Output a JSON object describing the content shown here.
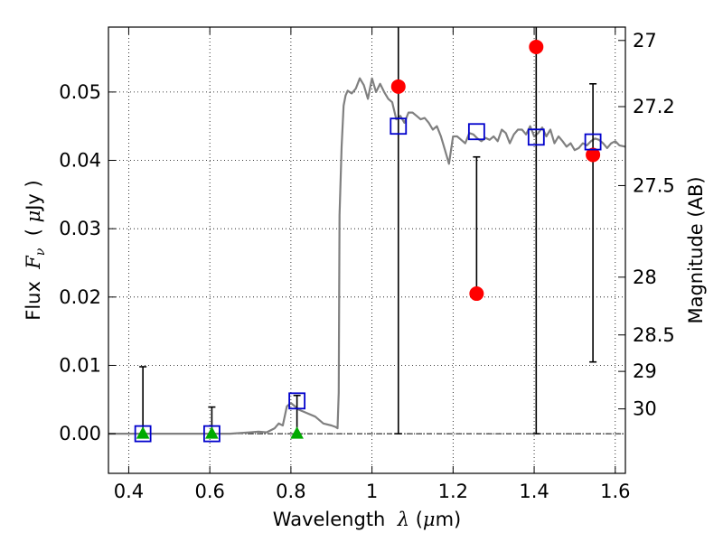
{
  "chart_data": {
    "type": "scatter",
    "xlabel_parts": [
      "Wavelength  ",
      "λ",
      " (",
      "μ",
      "m)"
    ],
    "ylabel_parts": [
      "Flux  ",
      "F",
      "ν",
      "  ( ",
      "μ",
      "Jy )"
    ],
    "y2label": "Magnitude (AB)",
    "xlim": [
      0.35,
      1.625
    ],
    "ylim": [
      -0.0058,
      0.0595
    ],
    "grid": true,
    "x_ticks": [
      {
        "value": 0.4,
        "label": "0.4"
      },
      {
        "value": 0.6,
        "label": "0.6"
      },
      {
        "value": 0.8,
        "label": "0.8"
      },
      {
        "value": 1.0,
        "label": "1"
      },
      {
        "value": 1.2,
        "label": "1.2"
      },
      {
        "value": 1.4,
        "label": "1.4"
      },
      {
        "value": 1.6,
        "label": "1.6"
      }
    ],
    "y_ticks": [
      {
        "value": 0.0,
        "label": "0.00"
      },
      {
        "value": 0.01,
        "label": "0.01"
      },
      {
        "value": 0.02,
        "label": "0.02"
      },
      {
        "value": 0.03,
        "label": "0.03"
      },
      {
        "value": 0.04,
        "label": "0.04"
      },
      {
        "value": 0.05,
        "label": "0.05"
      }
    ],
    "y2_ticks": [
      {
        "mag": 27,
        "label": "27"
      },
      {
        "mag": 27.2,
        "label": "27.2"
      },
      {
        "mag": 27.5,
        "label": "27.5"
      },
      {
        "mag": 28,
        "label": "28"
      },
      {
        "mag": 28.5,
        "label": "28.5"
      },
      {
        "mag": 29,
        "label": "29"
      },
      {
        "mag": 30,
        "label": "30"
      }
    ],
    "series": [
      {
        "kind": "line",
        "color": "#808080",
        "x": [
          0.35,
          0.4,
          0.45,
          0.5,
          0.55,
          0.6,
          0.65,
          0.7,
          0.72,
          0.74,
          0.76,
          0.77,
          0.78,
          0.79,
          0.8,
          0.82,
          0.84,
          0.86,
          0.88,
          0.9,
          0.91,
          0.915,
          0.918,
          0.92,
          0.925,
          0.93,
          0.935,
          0.94,
          0.95,
          0.96,
          0.97,
          0.98,
          0.99,
          1.0,
          1.01,
          1.02,
          1.03,
          1.04,
          1.05,
          1.06,
          1.07,
          1.08,
          1.09,
          1.1,
          1.11,
          1.12,
          1.13,
          1.14,
          1.15,
          1.16,
          1.17,
          1.18,
          1.19,
          1.2,
          1.21,
          1.22,
          1.23,
          1.24,
          1.25,
          1.26,
          1.27,
          1.28,
          1.29,
          1.3,
          1.31,
          1.32,
          1.33,
          1.34,
          1.35,
          1.36,
          1.37,
          1.38,
          1.39,
          1.4,
          1.41,
          1.42,
          1.43,
          1.44,
          1.45,
          1.46,
          1.47,
          1.48,
          1.49,
          1.5,
          1.51,
          1.52,
          1.53,
          1.54,
          1.55,
          1.56,
          1.57,
          1.58,
          1.59,
          1.6,
          1.61,
          1.625
        ],
        "y": [
          0.0,
          0.0,
          0.0,
          0.0,
          0.0,
          0.0,
          0.0,
          0.0002,
          0.0003,
          0.0002,
          0.0008,
          0.0015,
          0.0012,
          0.004,
          0.0045,
          0.0035,
          0.003,
          0.0025,
          0.0015,
          0.0012,
          0.001,
          0.0008,
          0.006,
          0.032,
          0.042,
          0.048,
          0.0495,
          0.0502,
          0.0498,
          0.0505,
          0.052,
          0.051,
          0.049,
          0.052,
          0.05,
          0.0512,
          0.05,
          0.049,
          0.0485,
          0.046,
          0.0465,
          0.0455,
          0.047,
          0.047,
          0.0465,
          0.046,
          0.0462,
          0.0455,
          0.0445,
          0.045,
          0.0435,
          0.0415,
          0.0395,
          0.0435,
          0.0435,
          0.043,
          0.0425,
          0.044,
          0.0438,
          0.0432,
          0.0428,
          0.0433,
          0.043,
          0.0435,
          0.0428,
          0.0445,
          0.044,
          0.0425,
          0.0438,
          0.0445,
          0.0445,
          0.0438,
          0.045,
          0.0435,
          0.044,
          0.0448,
          0.0435,
          0.0445,
          0.0425,
          0.0435,
          0.0428,
          0.042,
          0.0425,
          0.0415,
          0.0418,
          0.0425,
          0.0422,
          0.0428,
          0.0432,
          0.043,
          0.0425,
          0.0418,
          0.0425,
          0.0428,
          0.0422,
          0.042
        ]
      },
      {
        "kind": "errorbar",
        "marker": "circle",
        "color": "#ff0000",
        "x": [
          1.065,
          1.258,
          1.405,
          1.545
        ],
        "y": [
          0.0508,
          0.0205,
          0.0566,
          0.0408
        ],
        "yerr_low": [
          0.0,
          0.0205,
          0.0,
          0.0105
        ],
        "yerr_high": [
          0.0595,
          0.0405,
          0.0595,
          0.0512
        ]
      },
      {
        "kind": "errorbar",
        "marker": "triangle",
        "color": "#00aa00",
        "x": [
          0.435,
          0.605,
          0.815
        ],
        "y": [
          0.0,
          0.0,
          0.0
        ],
        "yerr_low": [
          0.0,
          0.0,
          0.0
        ],
        "yerr_high": [
          0.0098,
          0.0039,
          0.0056
        ]
      },
      {
        "kind": "scatter",
        "marker": "square",
        "color": "#0000cc",
        "x": [
          0.435,
          0.605,
          0.815,
          1.065,
          1.258,
          1.405,
          1.545
        ],
        "y": [
          0.0,
          0.0,
          0.0048,
          0.045,
          0.0442,
          0.0434,
          0.0427
        ]
      }
    ]
  }
}
